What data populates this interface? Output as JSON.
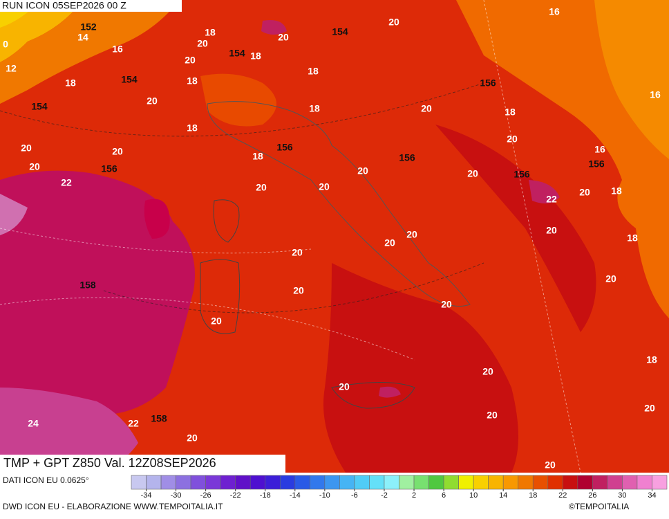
{
  "header": {
    "run": "RUN ICON 05SEP2026 00 Z",
    "title": "TMP + GPT Z850 Val. 12Z08SEP2026"
  },
  "footer": {
    "source": "DATI ICON EU 0.0625°",
    "credit": "DWD ICON EU - ELABORAZIONE WWW.TEMPOITALIA.IT",
    "brand": "©TEMPOITALIA"
  },
  "map": {
    "temperature_labels": [
      20,
      16,
      14,
      0,
      18,
      20,
      20,
      16,
      18,
      20,
      12,
      18,
      18,
      18,
      16,
      20,
      18,
      20,
      18,
      18,
      20,
      20,
      20,
      16,
      18,
      20,
      20,
      20,
      22,
      20,
      20,
      20,
      18,
      22,
      20,
      20,
      20,
      18,
      20,
      20,
      20,
      20,
      20,
      18,
      20,
      20,
      20,
      20,
      24,
      22,
      20,
      20
    ],
    "geopotential_labels": [
      152,
      154,
      154,
      154,
      156,
      154,
      156,
      156,
      156,
      156,
      156,
      158,
      158
    ]
  },
  "colorbar": {
    "lim": [
      -36,
      36
    ],
    "ticks": [
      -34,
      -30,
      -26,
      -22,
      -18,
      -14,
      -10,
      -6,
      -2,
      2,
      6,
      10,
      14,
      18,
      22,
      26,
      30,
      34
    ],
    "colors": [
      "#c8c8f0",
      "#b4b4ec",
      "#a08ee6",
      "#8c70e0",
      "#8050dc",
      "#7a38d8",
      "#6e20d0",
      "#6010c8",
      "#4e10d0",
      "#3c1ed8",
      "#2a3ce0",
      "#2a5ae6",
      "#3278ec",
      "#3c96f0",
      "#46b4f4",
      "#50ccf6",
      "#64e0f8",
      "#8cf0fa",
      "#a0f0a0",
      "#78e070",
      "#50c840",
      "#90dc30",
      "#f0f000",
      "#f8d000",
      "#f8b400",
      "#f89800",
      "#f07800",
      "#e85000",
      "#e03000",
      "#c81010",
      "#b00030",
      "#c02060",
      "#d04090",
      "#e060b0",
      "#f080d0",
      "#f8a0e0"
    ]
  }
}
